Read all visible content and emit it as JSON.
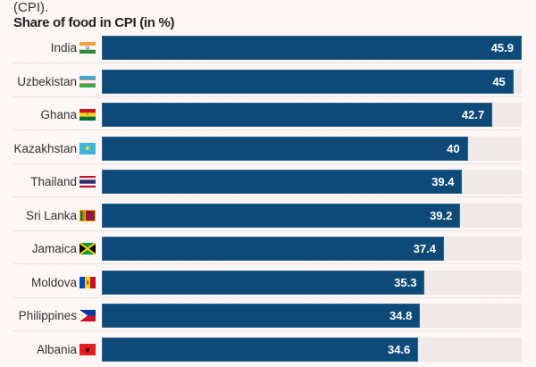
{
  "subtitle_fragment": "(CPI).",
  "chart_data": {
    "type": "bar",
    "orientation": "horizontal",
    "title": "Share of food in CPI (in %)",
    "categories": [
      "India",
      "Uzbekistan",
      "Ghana",
      "Kazakhstan",
      "Thailand",
      "Sri Lanka",
      "Jamaica",
      "Moldova",
      "Philippines",
      "Albania"
    ],
    "values": [
      45.9,
      45,
      42.7,
      40,
      39.4,
      39.2,
      37.4,
      35.3,
      34.8,
      34.6
    ],
    "xlim": [
      0,
      45.9
    ],
    "data_labels": [
      "45.9",
      "45",
      "42.7",
      "40",
      "39.4",
      "39.2",
      "37.4",
      "35.3",
      "34.8",
      "34.6"
    ],
    "bar_color": "#0d4a78",
    "track_color": "#efe9e9",
    "grid": false
  }
}
